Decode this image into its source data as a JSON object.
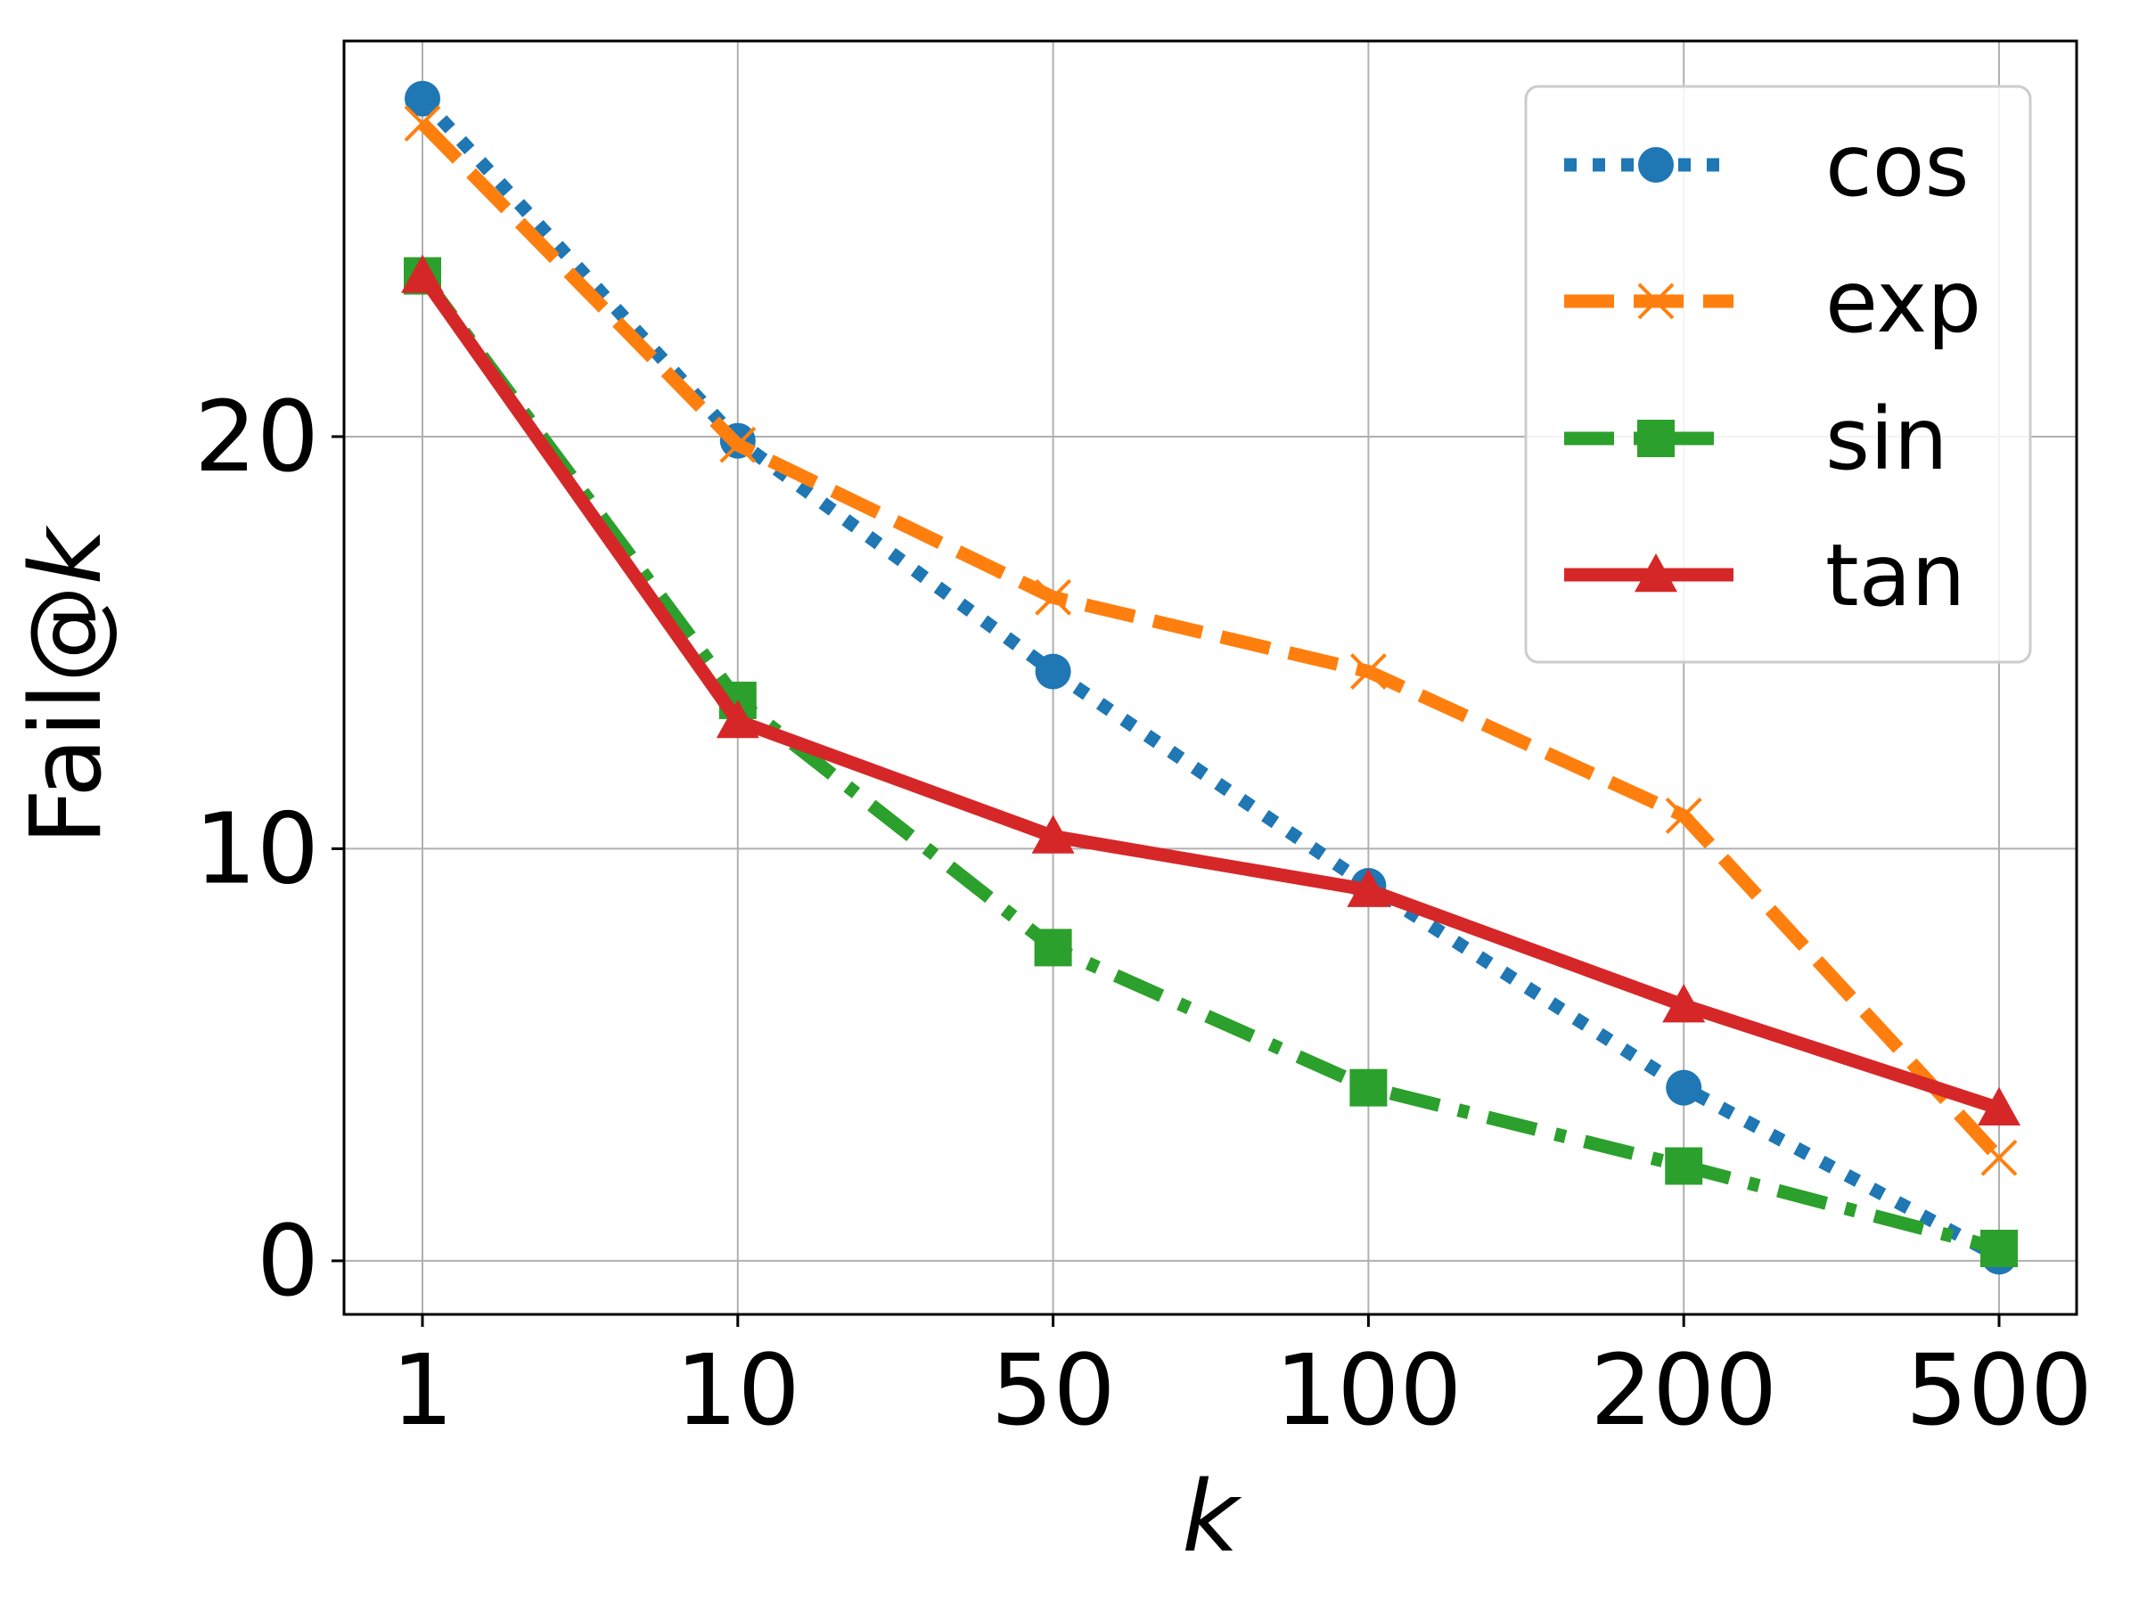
{
  "chart_data": {
    "type": "line",
    "title": "",
    "xlabel": "k",
    "ylabel_prefix": "Fail@",
    "ylabel_var": "k",
    "categories": [
      "1",
      "10",
      "50",
      "100",
      "200",
      "500"
    ],
    "yticks": [
      0,
      10,
      20
    ],
    "ylim": [
      -1.3,
      29.6
    ],
    "grid": true,
    "legend_position": "top-right",
    "series": [
      {
        "name": "cos",
        "color": "#1f77b4",
        "line_style": "dotted",
        "marker": "circle",
        "values": [
          28.2,
          19.9,
          14.3,
          9.1,
          4.2,
          0.1
        ]
      },
      {
        "name": "exp",
        "color": "#ff7f0e",
        "line_style": "dashed",
        "marker": "x",
        "values": [
          27.6,
          19.8,
          16.1,
          14.3,
          10.8,
          2.5
        ]
      },
      {
        "name": "sin",
        "color": "#2ca02c",
        "line_style": "dashdot",
        "marker": "square",
        "values": [
          23.9,
          13.6,
          7.6,
          4.2,
          2.3,
          0.3
        ]
      },
      {
        "name": "tan",
        "color": "#d62728",
        "line_style": "solid",
        "marker": "triangle",
        "values": [
          23.9,
          13.1,
          10.3,
          9.0,
          6.2,
          3.7
        ]
      }
    ]
  }
}
